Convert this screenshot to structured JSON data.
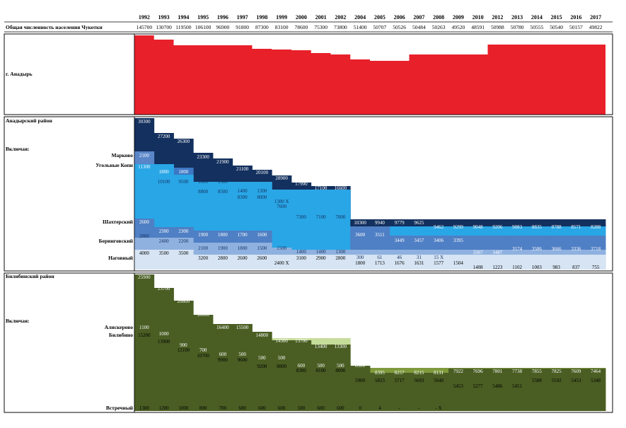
{
  "chart_data": {
    "type": "table",
    "years": [
      "1992",
      "1993",
      "1994",
      "1995",
      "1996",
      "1997",
      "1998",
      "1999",
      "2000",
      "2001",
      "2002",
      "2004",
      "2005",
      "2006",
      "2007",
      "2008",
      "2009",
      "2010",
      "2012",
      "2013",
      "2014",
      "2015",
      "2016",
      "2017"
    ],
    "total_label": "Общая численность населения Чукотки",
    "total_values": [
      "145700",
      "130700",
      "119500",
      "106100",
      "96900",
      "91800",
      "87300",
      "83100",
      "78600",
      "75300",
      "73800",
      "51400",
      "50707",
      "50526",
      "50484",
      "50263",
      "49520",
      "48591",
      "50988",
      "50780",
      "50555",
      "50540",
      "50157",
      "49822"
    ],
    "sections": [
      {
        "title": "г. Анадырь",
        "subtitle": "",
        "color": "#e8202a",
        "main_values": [
          "",
          "",
          "",
          "",
          "",
          "",
          "",
          "",
          "",
          "",
          "",
          "",
          "",
          "",
          "",
          "",
          "",
          "",
          "",
          "",
          "",
          "",
          "",
          ""
        ],
        "sub_rows": []
      },
      {
        "title": "Анадырский район",
        "subtitle": "Включая:",
        "color": "#13305e",
        "main_values": [
          "30300",
          "27200",
          "26300",
          "23300",
          "21900",
          "21100",
          "20100",
          "28900",
          "17900",
          "17100",
          "16600",
          "10300",
          "9940",
          "9779",
          "9625",
          "9462",
          "9299",
          "9048",
          "9206",
          "9083",
          "8835",
          "8788",
          "8571",
          "8288"
        ],
        "sub_rows": [
          {
            "label": "Марково",
            "color": "#5a86c8",
            "values": [
              "2100",
              "",
              "",
              "",
              "",
              "",
              "",
              "",
              "",
              "",
              "",
              "",
              "",
              "",
              "",
              "",
              "",
              "",
              "",
              "",
              "",
              "",
              "",
              ""
            ]
          },
          {
            "label": "Угольные Копи",
            "color": "#3d78c5",
            "values": [
              "11300",
              "1800",
              "1800",
              "",
              "",
              "",
              "",
              "",
              "",
              "",
              "",
              "",
              "",
              "",
              "",
              "",
              "",
              "",
              "",
              "",
              "",
              "",
              "",
              ""
            ]
          },
          {
            "label": "",
            "color": "#29a6e6",
            "values": [
              "",
              "10100",
              "9500",
              "1600",
              "1500",
              "1400",
              "1300",
              "1300 X",
              "",
              "",
              "",
              "",
              "",
              "",
              "",
              "",
              "",
              "",
              "",
              "",
              "",
              "",
              "",
              ""
            ]
          },
          {
            "label": "",
            "color": "#29a6e6",
            "values": [
              "",
              "",
              "",
              "8800",
              "8500",
              "8300",
              "8000",
              "7600",
              "7300",
              "7100",
              "7000",
              "",
              "",
              "",
              "",
              "",
              "",
              "",
              "",
              "",
              "",
              "",
              "",
              ""
            ]
          },
          {
            "label": "Шахтерский",
            "color": "#4f7fc4",
            "values": [
              "2600",
              "2300",
              "2300",
              "1900",
              "1800",
              "1700",
              "1600",
              "",
              "",
              "",
              "",
              "3600",
              "3511",
              "3449",
              "3457",
              "3406",
              "3395",
              "3367",
              "3487",
              "3574",
              "3586",
              "3666",
              "3336",
              "3718"
            ]
          },
          {
            "label": "Беринговский",
            "color": "#8fb1e0",
            "values": [
              "2800",
              "2400",
              "2200",
              "2100",
              "1900",
              "1800",
              "1500",
              "1500",
              "1400",
              "1400",
              "1300",
              "300",
              "61",
              "46",
              "31",
              "15 X",
              "",
              "",
              "",
              "",
              "",
              "",
              "",
              ""
            ]
          },
          {
            "label": "Наговный",
            "color": "#d6e4f3",
            "values": [
              "4000",
              "3500",
              "3500",
              "3200",
              "2800",
              "2600",
              "2600",
              "2400 X",
              "3100",
              "2900",
              "2800",
              "1800",
              "1713",
              "1676",
              "1631",
              "1577",
              "1504",
              "1408",
              "1223",
              "1102",
              "1003",
              "983",
              "837",
              "755"
            ]
          }
        ]
      },
      {
        "title": "Билибинский район",
        "subtitle": "Включая:",
        "color": "#4a5e23",
        "main_values": [
          "25900",
          "23700",
          "20800",
          "18000",
          "16400",
          "15500",
          "14800",
          "14300",
          "13700",
          "13400",
          "13300",
          "8500",
          "8395",
          "8257",
          "8215",
          "8131",
          "7922",
          "7696",
          "7801",
          "7738",
          "7855",
          "7825",
          "7609",
          "7464"
        ],
        "sub_rows": [
          {
            "label": "Алискерово",
            "color": "#7f9a3c",
            "values": [
              "1100",
              "1000",
              "900",
              "700",
              "600",
              "500",
              "500",
              "500",
              "600",
              "500",
              "500",
              "",
              "",
              "",
              "",
              "",
              "",
              "",
              "",
              "",
              "",
              "",
              "",
              ""
            ]
          },
          {
            "label": "Билибино",
            "color": "#a8c46a",
            "values": [
              "15200",
              "13900",
              "12100",
              "10700",
              "9900",
              "9600",
              "9200",
              "8800",
              "8300",
              "8100",
              "8000",
              "5900",
              "5823",
              "5717",
              "5693",
              "5640",
              "5453",
              "5277",
              "5486",
              "5451",
              "5588",
              "5592",
              "5453",
              "5348"
            ]
          },
          {
            "label": "Встречный",
            "color": "#c6dc9a",
            "values": [
              "1300",
              "1200",
              "1000",
              "800",
              "700",
              "600",
              "600",
              "600",
              "500",
              "600",
              "600",
              "0",
              "4",
              "-",
              "-",
              "- X",
              "",
              "",
              "",
              "",
              "",
              "",
              "",
              ""
            ]
          }
        ]
      }
    ]
  }
}
